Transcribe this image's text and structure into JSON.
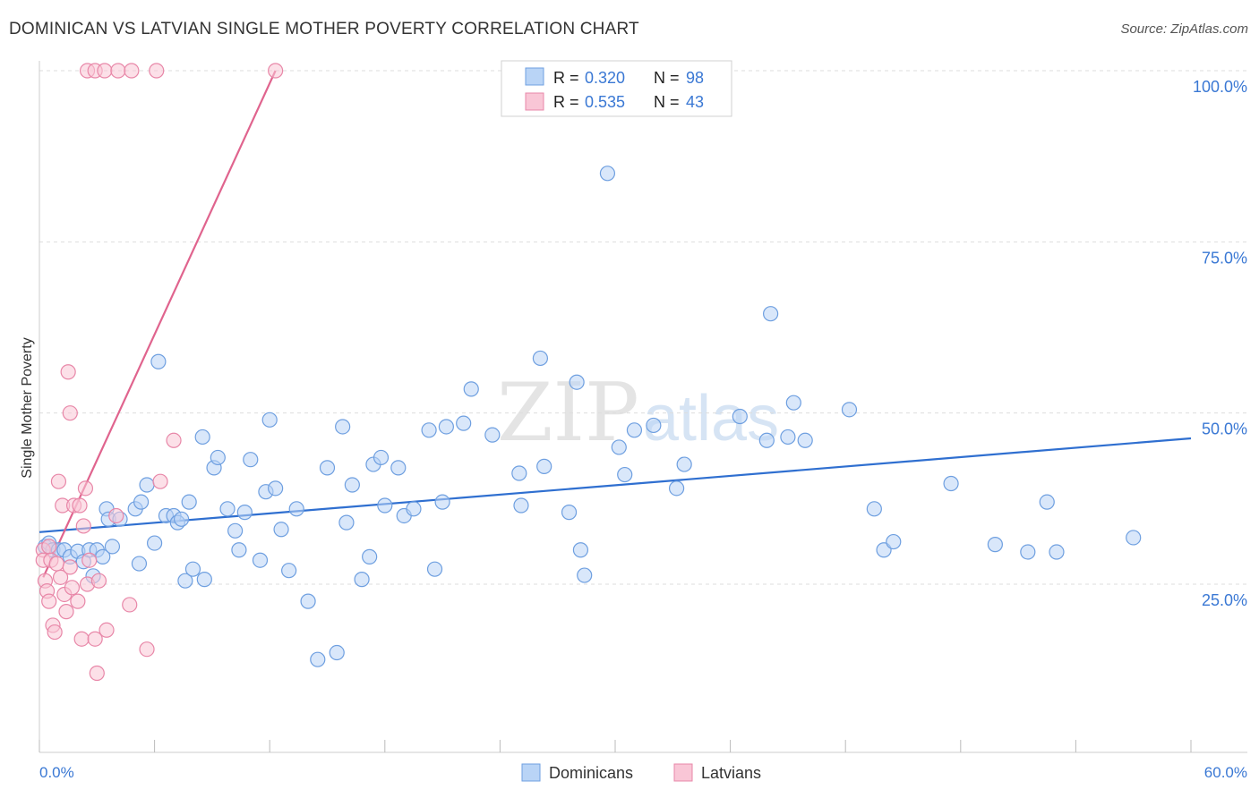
{
  "title": "DOMINICAN VS LATVIAN SINGLE MOTHER POVERTY CORRELATION CHART",
  "source": "Source: ZipAtlas.com",
  "watermark": {
    "zip": "ZIP",
    "atlas": "atlas"
  },
  "colors": {
    "blue_fill": "#b9d4f6",
    "blue_stroke": "#6e9fe0",
    "blue_line": "#2f6fd0",
    "pink_fill": "#f9c6d6",
    "pink_stroke": "#e887a8",
    "pink_line": "#e0648e",
    "axis_text": "#3a78d4",
    "grid": "#dddddd"
  },
  "stats_legend": [
    {
      "r_label": "R = ",
      "r_value": "0.320",
      "n_label": "N = ",
      "n_value": "98"
    },
    {
      "r_label": "R = ",
      "r_value": "0.535",
      "n_label": "N = ",
      "n_value": "43"
    }
  ],
  "chart_data": {
    "type": "scatter",
    "title": "DOMINICAN VS LATVIAN SINGLE MOTHER POVERTY CORRELATION CHART",
    "xlabel": "",
    "ylabel": "Single Mother Poverty",
    "xlim": [
      0,
      60
    ],
    "ylim": [
      0,
      105
    ],
    "x_tick_labels": [
      "0.0%",
      "60.0%"
    ],
    "y_ticks": [
      25,
      50,
      75,
      100
    ],
    "y_tick_labels": [
      "25.0%",
      "50.0%",
      "75.0%",
      "100.0%"
    ],
    "grid": true,
    "legend_position": "bottom-center",
    "series": [
      {
        "name": "Dominicans",
        "color": "#6e9fe0",
        "trend": {
          "x": [
            0,
            60
          ],
          "y": [
            32.6,
            46.3
          ]
        },
        "points": [
          [
            0.3,
            30.5
          ],
          [
            0.5,
            31
          ],
          [
            0.7,
            30
          ],
          [
            1.0,
            30
          ],
          [
            1.3,
            30
          ],
          [
            1.6,
            29
          ],
          [
            2.0,
            29.8
          ],
          [
            2.3,
            28.3
          ],
          [
            2.6,
            30
          ],
          [
            2.8,
            26.2
          ],
          [
            3.0,
            30
          ],
          [
            3.3,
            29
          ],
          [
            3.5,
            36
          ],
          [
            3.6,
            34.5
          ],
          [
            3.8,
            30.5
          ],
          [
            4.2,
            34.5
          ],
          [
            5.0,
            36
          ],
          [
            5.2,
            28
          ],
          [
            5.3,
            37
          ],
          [
            5.6,
            39.5
          ],
          [
            6.0,
            31
          ],
          [
            6.2,
            57.5
          ],
          [
            6.6,
            35
          ],
          [
            7.0,
            35
          ],
          [
            7.2,
            34
          ],
          [
            7.6,
            25.5
          ],
          [
            7.8,
            37
          ],
          [
            8.0,
            27.2
          ],
          [
            8.5,
            46.5
          ],
          [
            8.6,
            25.7
          ],
          [
            9.1,
            42
          ],
          [
            9.3,
            43.5
          ],
          [
            9.8,
            36
          ],
          [
            10.2,
            32.8
          ],
          [
            10.4,
            30
          ],
          [
            10.7,
            35.5
          ],
          [
            11.0,
            43.2
          ],
          [
            11.5,
            28.5
          ],
          [
            11.8,
            38.5
          ],
          [
            12.0,
            49
          ],
          [
            12.3,
            39
          ],
          [
            12.6,
            33
          ],
          [
            13.0,
            27
          ],
          [
            13.4,
            36
          ],
          [
            14.0,
            22.5
          ],
          [
            14.5,
            14
          ],
          [
            15.0,
            42
          ],
          [
            15.5,
            15
          ],
          [
            15.8,
            48
          ],
          [
            16.3,
            39.5
          ],
          [
            16.8,
            25.7
          ],
          [
            17.2,
            29
          ],
          [
            17.4,
            42.5
          ],
          [
            17.8,
            43.5
          ],
          [
            18.0,
            36.5
          ],
          [
            18.7,
            42
          ],
          [
            19.0,
            35
          ],
          [
            19.5,
            36
          ],
          [
            20.3,
            47.5
          ],
          [
            20.6,
            27.2
          ],
          [
            21.2,
            48
          ],
          [
            22.1,
            48.5
          ],
          [
            22.5,
            53.5
          ],
          [
            23.6,
            46.8
          ],
          [
            25.0,
            41.2
          ],
          [
            25.1,
            36.5
          ],
          [
            26.1,
            58
          ],
          [
            26.3,
            42.2
          ],
          [
            27.6,
            35.5
          ],
          [
            28.2,
            30
          ],
          [
            28.4,
            26.3
          ],
          [
            28.0,
            54.5
          ],
          [
            29.6,
            85
          ],
          [
            30.2,
            45
          ],
          [
            30.5,
            41
          ],
          [
            31.0,
            47.5
          ],
          [
            32.0,
            48.2
          ],
          [
            33.2,
            39
          ],
          [
            33.6,
            42.5
          ],
          [
            36.5,
            49.5
          ],
          [
            37.9,
            46
          ],
          [
            38.1,
            64.5
          ],
          [
            39.0,
            46.5
          ],
          [
            39.3,
            51.5
          ],
          [
            39.9,
            46
          ],
          [
            42.2,
            50.5
          ],
          [
            43.5,
            36
          ],
          [
            44.0,
            30
          ],
          [
            44.5,
            31.2
          ],
          [
            47.5,
            39.7
          ],
          [
            49.8,
            30.8
          ],
          [
            51.5,
            29.7
          ],
          [
            52.5,
            37
          ],
          [
            53.0,
            29.7
          ],
          [
            57.0,
            31.8
          ],
          [
            16.0,
            34
          ],
          [
            7.4,
            34.5
          ],
          [
            21.0,
            37
          ]
        ]
      },
      {
        "name": "Latvians",
        "color": "#e887a8",
        "trend": {
          "x": [
            0.2,
            12.3
          ],
          "y": [
            26,
            100
          ]
        },
        "points": [
          [
            0.2,
            30
          ],
          [
            0.2,
            28.5
          ],
          [
            0.3,
            25.5
          ],
          [
            0.4,
            24
          ],
          [
            0.5,
            22.5
          ],
          [
            0.5,
            30.5
          ],
          [
            0.6,
            28.5
          ],
          [
            0.7,
            19
          ],
          [
            0.8,
            18
          ],
          [
            0.9,
            28
          ],
          [
            1.0,
            40
          ],
          [
            1.1,
            26
          ],
          [
            1.2,
            36.5
          ],
          [
            1.3,
            23.5
          ],
          [
            1.4,
            21
          ],
          [
            1.5,
            56
          ],
          [
            1.6,
            27.5
          ],
          [
            1.6,
            50
          ],
          [
            1.7,
            24.5
          ],
          [
            1.8,
            36.5
          ],
          [
            2.0,
            22.5
          ],
          [
            2.1,
            36.5
          ],
          [
            2.2,
            17
          ],
          [
            2.3,
            33.5
          ],
          [
            2.4,
            39
          ],
          [
            2.5,
            25
          ],
          [
            2.6,
            28.5
          ],
          [
            2.9,
            17
          ],
          [
            3.0,
            12
          ],
          [
            3.1,
            25.5
          ],
          [
            3.5,
            18.3
          ],
          [
            4.0,
            35
          ],
          [
            4.7,
            22
          ],
          [
            5.6,
            15.5
          ],
          [
            6.3,
            40
          ],
          [
            7.0,
            46
          ],
          [
            2.5,
            100
          ],
          [
            2.9,
            100
          ],
          [
            3.4,
            100
          ],
          [
            4.1,
            100
          ],
          [
            4.8,
            100
          ],
          [
            6.1,
            100
          ],
          [
            12.3,
            100
          ]
        ]
      }
    ]
  }
}
